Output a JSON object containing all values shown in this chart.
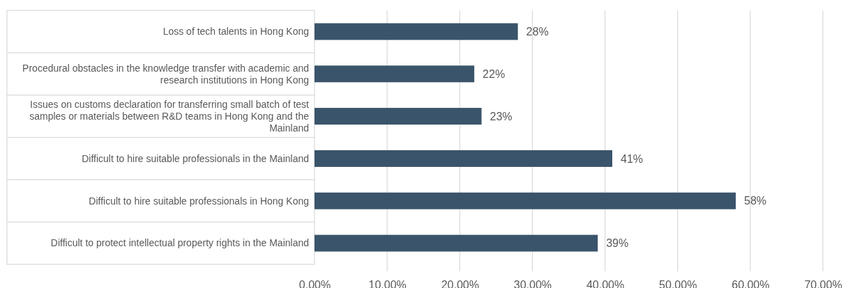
{
  "chart_data": {
    "type": "bar",
    "orientation": "horizontal",
    "categories": [
      "Loss of tech talents in Hong Kong",
      "Procedural obstacles in the knowledge transfer with academic and research institutions in Hong Kong",
      "Issues on customs declaration for transferring small batch of test samples or materials between R&D teams in Hong Kong and the Mainland",
      "Difficult to hire suitable professionals in the Mainland",
      "Difficult to hire suitable professionals in Hong Kong",
      "Difficult to protect intellectual property rights in the Mainland"
    ],
    "values": [
      28,
      22,
      23,
      41,
      58,
      39
    ],
    "value_labels": [
      "28%",
      "22%",
      "23%",
      "41%",
      "58%",
      "39%"
    ],
    "color": "#3a546b",
    "xlim": [
      0,
      70
    ],
    "xticks": [
      {
        "value": 0,
        "label": "0.00%"
      },
      {
        "value": 10,
        "label": "10.00%"
      },
      {
        "value": 20,
        "label": "20.00%"
      },
      {
        "value": 30,
        "label": "30.00%"
      },
      {
        "value": 40,
        "label": "40.00%"
      },
      {
        "value": 50,
        "label": "50.00%"
      },
      {
        "value": 60,
        "label": "60.00%"
      },
      {
        "value": 70,
        "label": "70.00%"
      }
    ],
    "grid": "x"
  }
}
